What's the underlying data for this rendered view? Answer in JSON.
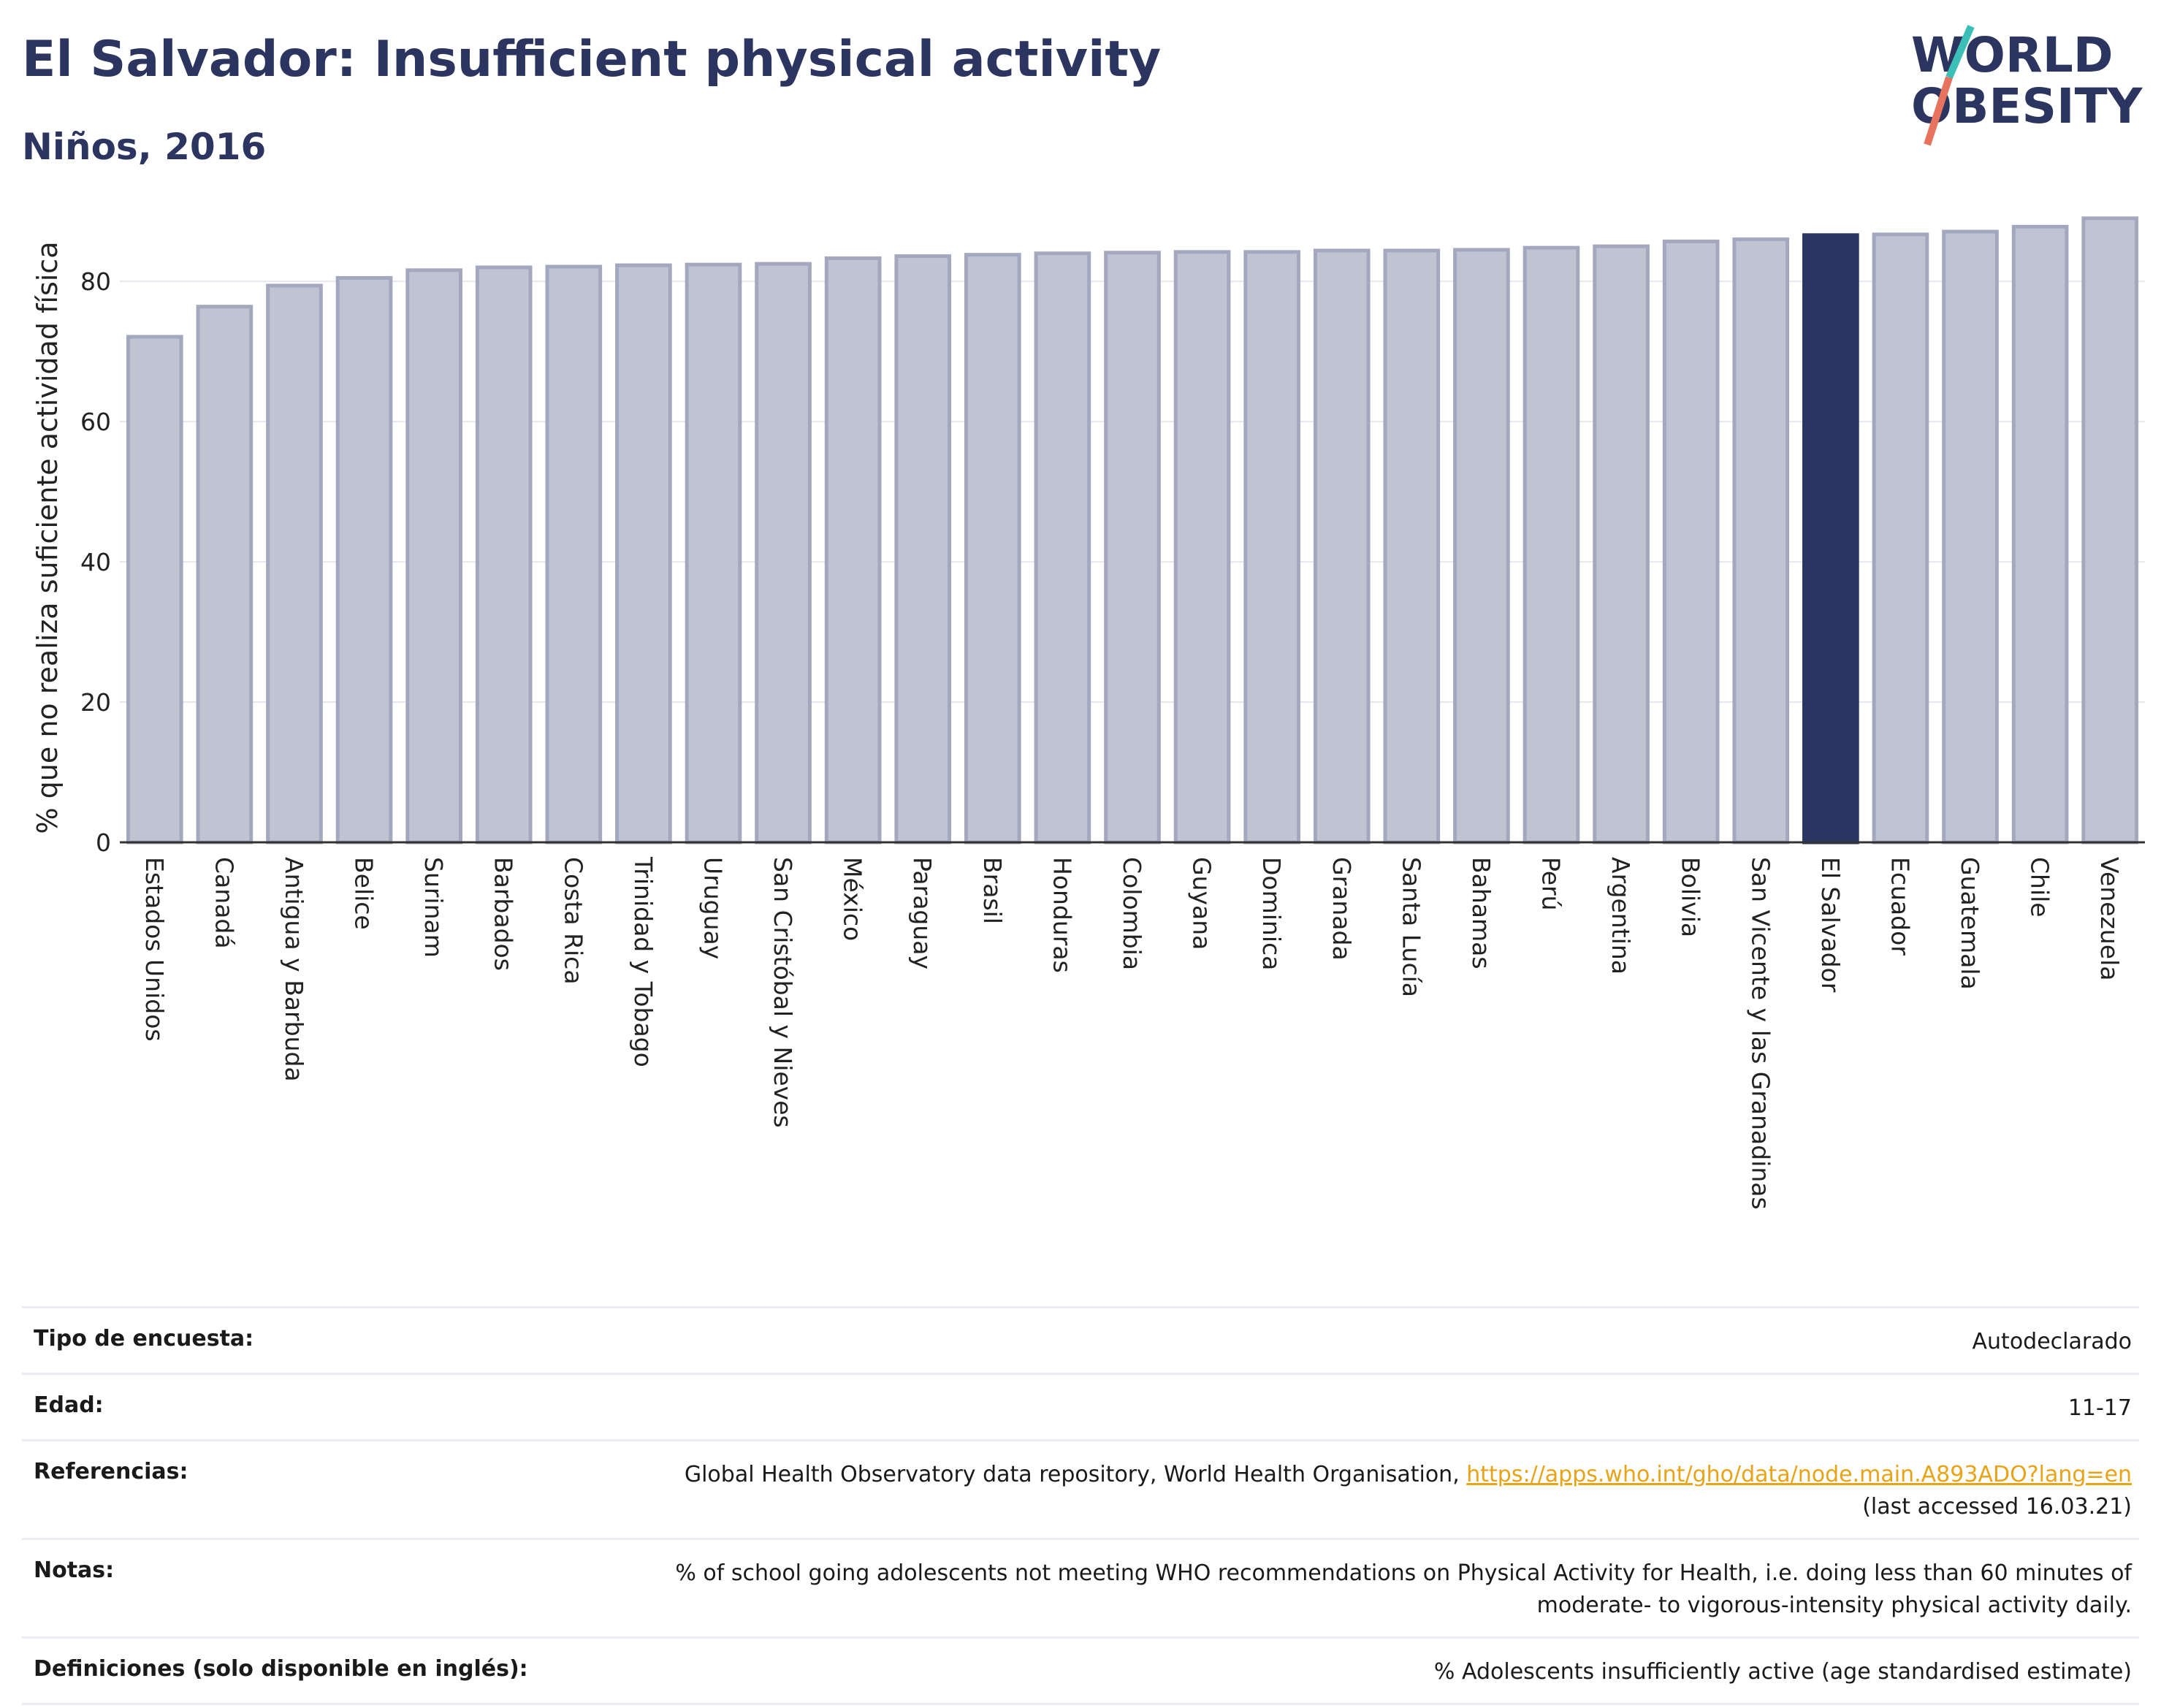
{
  "header": {
    "title": "El Salvador: Insufficient physical activity",
    "subtitle": "Niños, 2016"
  },
  "logo": {
    "line1": "WORLD",
    "line2": "OBESITY"
  },
  "colors": {
    "bar": "#c0c4d2",
    "bar_border": "#a3a8bf",
    "highlight": "#2a3561",
    "title": "#2b3560",
    "link": "#e8a317"
  },
  "chart_data": {
    "type": "bar",
    "ylabel": "% que no realiza suficiente actividad física",
    "ylim": [
      0,
      92
    ],
    "yticks": [
      0,
      20,
      40,
      60,
      80
    ],
    "grid": true,
    "highlight": "El Salvador",
    "categories": [
      "Estados Unidos",
      "Canadá",
      "Antigua y Barbuda",
      "Belice",
      "Surinam",
      "Barbados",
      "Costa Rica",
      "Trinidad y Tobago",
      "Uruguay",
      "San Cristóbal y Nieves",
      "México",
      "Paraguay",
      "Brasil",
      "Honduras",
      "Colombia",
      "Guyana",
      "Dominica",
      "Granada",
      "Santa Lucía",
      "Bahamas",
      "Perú",
      "Argentina",
      "Bolivia",
      "San Vicente y las Granadinas",
      "El Salvador",
      "Ecuador",
      "Guatemala",
      "Chile",
      "Venezuela"
    ],
    "values": [
      72.1,
      76.4,
      79.4,
      80.5,
      81.6,
      82.0,
      82.1,
      82.3,
      82.4,
      82.5,
      83.3,
      83.6,
      83.8,
      84.0,
      84.1,
      84.2,
      84.2,
      84.4,
      84.4,
      84.5,
      84.8,
      85.0,
      85.7,
      86.0,
      86.6,
      86.7,
      87.1,
      87.8,
      89.0
    ]
  },
  "meta": {
    "survey_label": "Tipo de encuesta:",
    "survey_value": "Autodeclarado",
    "age_label": "Edad:",
    "age_value": "11-17",
    "ref_label": "Referencias:",
    "ref_text": "Global Health Observatory data repository, World Health Organisation, ",
    "ref_link": "https://apps.who.int/gho/data/node.main.A893ADO?lang=en",
    "ref_accessed": "(last accessed 16.03.21)",
    "notes_label": "Notas:",
    "notes_line1": "% of school going adolescents not meeting WHO recommendations on Physical Activity for Health, i.e. doing less than 60 minutes of",
    "notes_line2": "moderate- to vigorous-intensity physical activity daily.",
    "def_label": "Definiciones (solo disponible en inglés):",
    "def_value": "% Adolescents insufficiently active (age standardised estimate)"
  }
}
